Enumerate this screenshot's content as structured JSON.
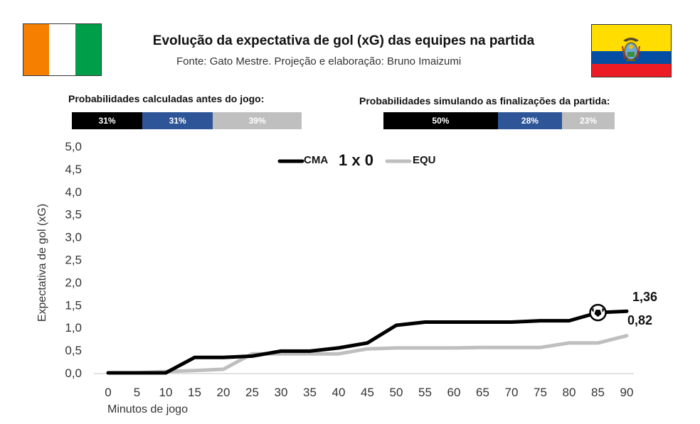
{
  "title": "Evolução da expectativa de gol (xG) das equipes na partida",
  "subtitle": "Fonte: Gato Mestre. Projeção e elaboração: Bruno Imaizumi",
  "flags": {
    "left": {
      "colors": [
        "#f77f00",
        "#ffffff",
        "#009e49"
      ]
    },
    "right": {
      "colors": [
        "#ffdd00",
        "#034ea2",
        "#ed1c24"
      ]
    }
  },
  "probabilities": {
    "pre_game": {
      "label": "Probabilidades calculadas antes do jogo:",
      "segments": [
        {
          "value": "31%",
          "fraction": 0.31,
          "color": "#000000"
        },
        {
          "value": "31%",
          "fraction": 0.31,
          "color": "#2e5597"
        },
        {
          "value": "39%",
          "fraction": 0.39,
          "color": "#bfbfbf"
        }
      ]
    },
    "simulated": {
      "label": "Probabilidades simulando as finalizações da partida:",
      "segments": [
        {
          "value": "50%",
          "fraction": 0.5,
          "color": "#000000"
        },
        {
          "value": "28%",
          "fraction": 0.28,
          "color": "#2e5597"
        },
        {
          "value": "23%",
          "fraction": 0.23,
          "color": "#bfbfbf"
        }
      ]
    }
  },
  "chart_data": {
    "type": "line",
    "xlabel": "Minutos de jogo",
    "ylabel": "Expectativa de gol (xG)",
    "score": "1 x 0",
    "x": [
      0,
      5,
      10,
      15,
      20,
      25,
      30,
      35,
      40,
      45,
      50,
      55,
      60,
      65,
      70,
      75,
      80,
      85,
      90
    ],
    "xlim": [
      0,
      90
    ],
    "ylim": [
      0,
      5
    ],
    "yticks": [
      "0,0",
      "0,5",
      "1,0",
      "1,5",
      "2,0",
      "2,5",
      "3,0",
      "3,5",
      "4,0",
      "4,5",
      "5,0"
    ],
    "ytick_values": [
      0,
      0.5,
      1,
      1.5,
      2,
      2.5,
      3,
      3.5,
      4,
      4.5,
      5
    ],
    "legend_position": "top-center",
    "series": [
      {
        "name": "CMA",
        "color": "#000000",
        "points": [
          [
            0,
            0
          ],
          [
            5,
            0
          ],
          [
            10,
            0
          ],
          [
            15,
            0.34
          ],
          [
            20,
            0.34
          ],
          [
            25,
            0.37
          ],
          [
            30,
            0.48
          ],
          [
            35,
            0.48
          ],
          [
            40,
            0.55
          ],
          [
            45,
            0.66
          ],
          [
            50,
            1.05
          ],
          [
            55,
            1.12
          ],
          [
            60,
            1.12
          ],
          [
            65,
            1.12
          ],
          [
            70,
            1.12
          ],
          [
            75,
            1.15
          ],
          [
            80,
            1.15
          ],
          [
            85,
            1.33
          ],
          [
            90,
            1.36
          ]
        ],
        "end_label": "1,36",
        "goal_marker": {
          "x": 85,
          "y": 1.33
        }
      },
      {
        "name": "EQU",
        "color": "#bfbfbf",
        "points": [
          [
            0,
            0
          ],
          [
            5,
            0
          ],
          [
            10,
            0.03
          ],
          [
            15,
            0.05
          ],
          [
            20,
            0.08
          ],
          [
            25,
            0.42
          ],
          [
            30,
            0.42
          ],
          [
            35,
            0.42
          ],
          [
            40,
            0.42
          ],
          [
            45,
            0.53
          ],
          [
            50,
            0.55
          ],
          [
            55,
            0.55
          ],
          [
            60,
            0.55
          ],
          [
            65,
            0.56
          ],
          [
            70,
            0.56
          ],
          [
            75,
            0.56
          ],
          [
            80,
            0.66
          ],
          [
            85,
            0.66
          ],
          [
            90,
            0.82
          ]
        ],
        "end_label": "0,82"
      }
    ]
  }
}
